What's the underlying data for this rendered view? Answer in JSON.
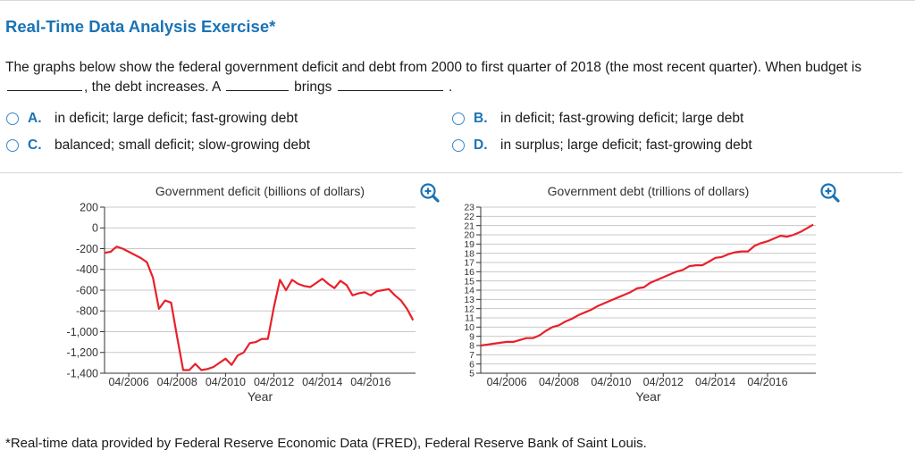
{
  "title": "Real-Time Data Analysis Exercise*",
  "question": {
    "part1": "The graphs below show the federal government deficit and debt from 2000 to first quarter of 2018 (the most recent quarter). When budget is",
    "part2": ", the debt increases. A",
    "part3": "brings",
    "part4": "."
  },
  "options": [
    {
      "letter": "A.",
      "text": "in deficit; large deficit; fast-growing debt"
    },
    {
      "letter": "B.",
      "text": "in deficit; fast-growing deficit; large debt"
    },
    {
      "letter": "C.",
      "text": "balanced; small deficit; slow-growing debt"
    },
    {
      "letter": "D.",
      "text": "in surplus; large deficit; fast-growing debt"
    }
  ],
  "colors": {
    "accent": "#1a73b5",
    "series": "#e8202a",
    "grid": "#c8c8c8"
  },
  "footnote": "*Real-time data provided by Federal Reserve Economic Data (FRED), Federal Reserve Bank of Saint Louis.",
  "chart_data": [
    {
      "type": "line",
      "title": "Government deficit (billions of dollars)",
      "xlabel": "Year",
      "ylabel": "",
      "xlim": [
        2005.25,
        2018.1
      ],
      "ylim": [
        -1400,
        200
      ],
      "yticks": [
        200,
        0,
        -200,
        -400,
        -600,
        -800,
        -1000,
        -1200,
        -1400
      ],
      "ytick_labels": [
        "200",
        "0",
        "-200",
        "-400",
        "-600",
        "-800",
        "-1,000",
        "-1,200",
        "-1,400"
      ],
      "xticks": [
        2006.25,
        2008.25,
        2010.25,
        2012.25,
        2014.25,
        2016.25
      ],
      "xtick_labels": [
        "04/2006",
        "04/2008",
        "04/2010",
        "04/2012",
        "04/2014",
        "04/2016"
      ],
      "series": [
        {
          "name": "Deficit",
          "x": [
            2005.25,
            2005.5,
            2005.75,
            2006.0,
            2006.25,
            2006.5,
            2006.75,
            2007.0,
            2007.25,
            2007.5,
            2007.75,
            2008.0,
            2008.25,
            2008.5,
            2008.75,
            2009.0,
            2009.25,
            2009.5,
            2009.75,
            2010.0,
            2010.25,
            2010.5,
            2010.75,
            2011.0,
            2011.25,
            2011.5,
            2011.75,
            2012.0,
            2012.25,
            2012.5,
            2012.75,
            2013.0,
            2013.25,
            2013.5,
            2013.75,
            2014.0,
            2014.25,
            2014.5,
            2014.75,
            2015.0,
            2015.25,
            2015.5,
            2015.75,
            2016.0,
            2016.25,
            2016.5,
            2016.75,
            2017.0,
            2017.25,
            2017.5,
            2017.75,
            2018.0
          ],
          "values": [
            -240,
            -230,
            -180,
            -200,
            -230,
            -260,
            -290,
            -330,
            -480,
            -780,
            -700,
            -720,
            -1050,
            -1370,
            -1370,
            -1310,
            -1370,
            -1360,
            -1340,
            -1300,
            -1260,
            -1320,
            -1230,
            -1200,
            -1110,
            -1100,
            -1070,
            -1070,
            -760,
            -500,
            -600,
            -500,
            -540,
            -560,
            -570,
            -530,
            -490,
            -540,
            -580,
            -510,
            -550,
            -650,
            -630,
            -620,
            -650,
            -610,
            -600,
            -590,
            -650,
            -700,
            -780,
            -890
          ]
        }
      ]
    },
    {
      "type": "line",
      "title": "Government debt (trillions of dollars)",
      "xlabel": "Year",
      "ylabel": "",
      "xlim": [
        2005.25,
        2018.1
      ],
      "ylim": [
        5,
        23
      ],
      "yticks": [
        5,
        6,
        7,
        8,
        9,
        10,
        11,
        12,
        13,
        14,
        15,
        16,
        17,
        18,
        19,
        20,
        21,
        22,
        23
      ],
      "ytick_labels": [
        "5",
        "6",
        "7",
        "8",
        "9",
        "10",
        "11",
        "12",
        "13",
        "14",
        "15",
        "16",
        "17",
        "18",
        "19",
        "20",
        "21",
        "22",
        "23"
      ],
      "xticks": [
        2006.25,
        2008.25,
        2010.25,
        2012.25,
        2014.25,
        2016.25
      ],
      "xtick_labels": [
        "04/2006",
        "04/2008",
        "04/2010",
        "04/2012",
        "04/2014",
        "04/2016"
      ],
      "series": [
        {
          "name": "Debt",
          "x": [
            2005.25,
            2005.5,
            2005.75,
            2006.0,
            2006.25,
            2006.5,
            2006.75,
            2007.0,
            2007.25,
            2007.5,
            2007.75,
            2008.0,
            2008.25,
            2008.5,
            2008.75,
            2009.0,
            2009.25,
            2009.5,
            2009.75,
            2010.0,
            2010.25,
            2010.5,
            2010.75,
            2011.0,
            2011.25,
            2011.5,
            2011.75,
            2012.0,
            2012.25,
            2012.5,
            2012.75,
            2013.0,
            2013.25,
            2013.5,
            2013.75,
            2014.0,
            2014.25,
            2014.5,
            2014.75,
            2015.0,
            2015.25,
            2015.5,
            2015.75,
            2016.0,
            2016.25,
            2016.5,
            2016.75,
            2017.0,
            2017.25,
            2017.5,
            2017.75,
            2018.0
          ],
          "values": [
            8.0,
            8.1,
            8.2,
            8.3,
            8.4,
            8.4,
            8.6,
            8.8,
            8.8,
            9.1,
            9.6,
            10.0,
            10.2,
            10.6,
            10.9,
            11.3,
            11.6,
            11.9,
            12.3,
            12.6,
            12.9,
            13.2,
            13.5,
            13.8,
            14.2,
            14.3,
            14.8,
            15.1,
            15.4,
            15.7,
            16.0,
            16.2,
            16.6,
            16.7,
            16.7,
            17.1,
            17.5,
            17.6,
            17.9,
            18.1,
            18.2,
            18.2,
            18.8,
            19.1,
            19.3,
            19.6,
            19.9,
            19.8,
            20.0,
            20.3,
            20.7,
            21.1
          ]
        }
      ]
    }
  ]
}
